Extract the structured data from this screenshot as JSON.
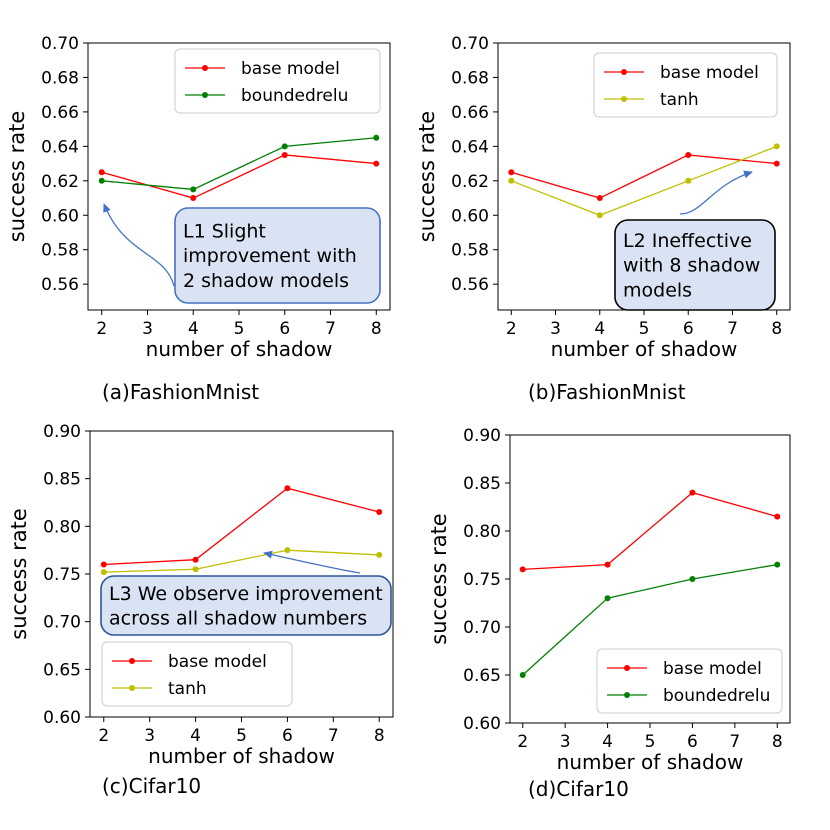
{
  "chart_data": [
    {
      "id": "a",
      "type": "line",
      "caption": "(a)FashionMnist",
      "xlabel": "number of shadow",
      "ylabel": "success rate",
      "x": [
        2,
        4,
        6,
        8
      ],
      "xlim": [
        1.7,
        8.3
      ],
      "ylim": [
        0.545,
        0.7
      ],
      "yticks": [
        "0.56",
        "0.58",
        "0.60",
        "0.62",
        "0.64",
        "0.66",
        "0.68",
        "0.70"
      ],
      "xticks": [
        "2",
        "3",
        "4",
        "5",
        "6",
        "7",
        "8"
      ],
      "legend_position": "top-right",
      "series": [
        {
          "name": "base model",
          "color": "#ff0000",
          "values": [
            0.625,
            0.61,
            0.635,
            0.63
          ]
        },
        {
          "name": "boundedrelu",
          "color": "#008000",
          "values": [
            0.62,
            0.615,
            0.64,
            0.645
          ]
        }
      ],
      "annotation": {
        "lines": [
          "L1 Slight",
          "improvement with",
          "2 shadow models"
        ],
        "border": "#4472c4",
        "target_x": 2,
        "target_y": 0.61
      }
    },
    {
      "id": "b",
      "type": "line",
      "caption": "(b)FashionMnist",
      "xlabel": "number of shadow",
      "ylabel": "success rate",
      "x": [
        2,
        4,
        6,
        8
      ],
      "xlim": [
        1.7,
        8.3
      ],
      "ylim": [
        0.545,
        0.7
      ],
      "yticks": [
        "0.56",
        "0.58",
        "0.60",
        "0.62",
        "0.64",
        "0.66",
        "0.68",
        "0.70"
      ],
      "xticks": [
        "2",
        "3",
        "4",
        "5",
        "6",
        "7",
        "8"
      ],
      "legend_position": "top-right",
      "series": [
        {
          "name": "base model",
          "color": "#ff0000",
          "values": [
            0.625,
            0.61,
            0.635,
            0.63
          ]
        },
        {
          "name": "tanh",
          "color": "#bfbf00",
          "values": [
            0.62,
            0.6,
            0.62,
            0.64
          ]
        }
      ],
      "annotation": {
        "lines": [
          "L2 Ineffective",
          "with 8 shadow",
          "models"
        ],
        "border": "#000000",
        "target_x": 7.9,
        "target_y": 0.63
      }
    },
    {
      "id": "c",
      "type": "line",
      "caption": "(c)Cifar10",
      "xlabel": "number of shadow",
      "ylabel": "success rate",
      "x": [
        2,
        4,
        6,
        8
      ],
      "xlim": [
        1.7,
        8.3
      ],
      "ylim": [
        0.6,
        0.9
      ],
      "yticks": [
        "0.60",
        "0.65",
        "0.70",
        "0.75",
        "0.80",
        "0.85",
        "0.90"
      ],
      "xticks": [
        "2",
        "3",
        "4",
        "5",
        "6",
        "7",
        "8"
      ],
      "legend_position": "bottom-left",
      "series": [
        {
          "name": "base model",
          "color": "#ff0000",
          "values": [
            0.76,
            0.765,
            0.84,
            0.815
          ]
        },
        {
          "name": "tanh",
          "color": "#bfbf00",
          "values": [
            0.752,
            0.755,
            0.775,
            0.77
          ]
        }
      ],
      "annotation": {
        "lines": [
          "L3 We observe improvement",
          "across all shadow numbers"
        ],
        "border": "#2f5597",
        "target_x": 5.4,
        "target_y": 0.77
      }
    },
    {
      "id": "d",
      "type": "line",
      "caption": "(d)Cifar10",
      "xlabel": "number of shadow",
      "ylabel": "success rate",
      "x": [
        2,
        4,
        6,
        8
      ],
      "xlim": [
        1.7,
        8.3
      ],
      "ylim": [
        0.6,
        0.9
      ],
      "yticks": [
        "0.60",
        "0.65",
        "0.70",
        "0.75",
        "0.80",
        "0.85",
        "0.90"
      ],
      "xticks": [
        "2",
        "3",
        "4",
        "5",
        "6",
        "7",
        "8"
      ],
      "legend_position": "bottom-right",
      "series": [
        {
          "name": "base model",
          "color": "#ff0000",
          "values": [
            0.76,
            0.765,
            0.84,
            0.815
          ]
        },
        {
          "name": "boundedrelu",
          "color": "#008000",
          "values": [
            0.65,
            0.73,
            0.75,
            0.765
          ]
        }
      ]
    }
  ]
}
